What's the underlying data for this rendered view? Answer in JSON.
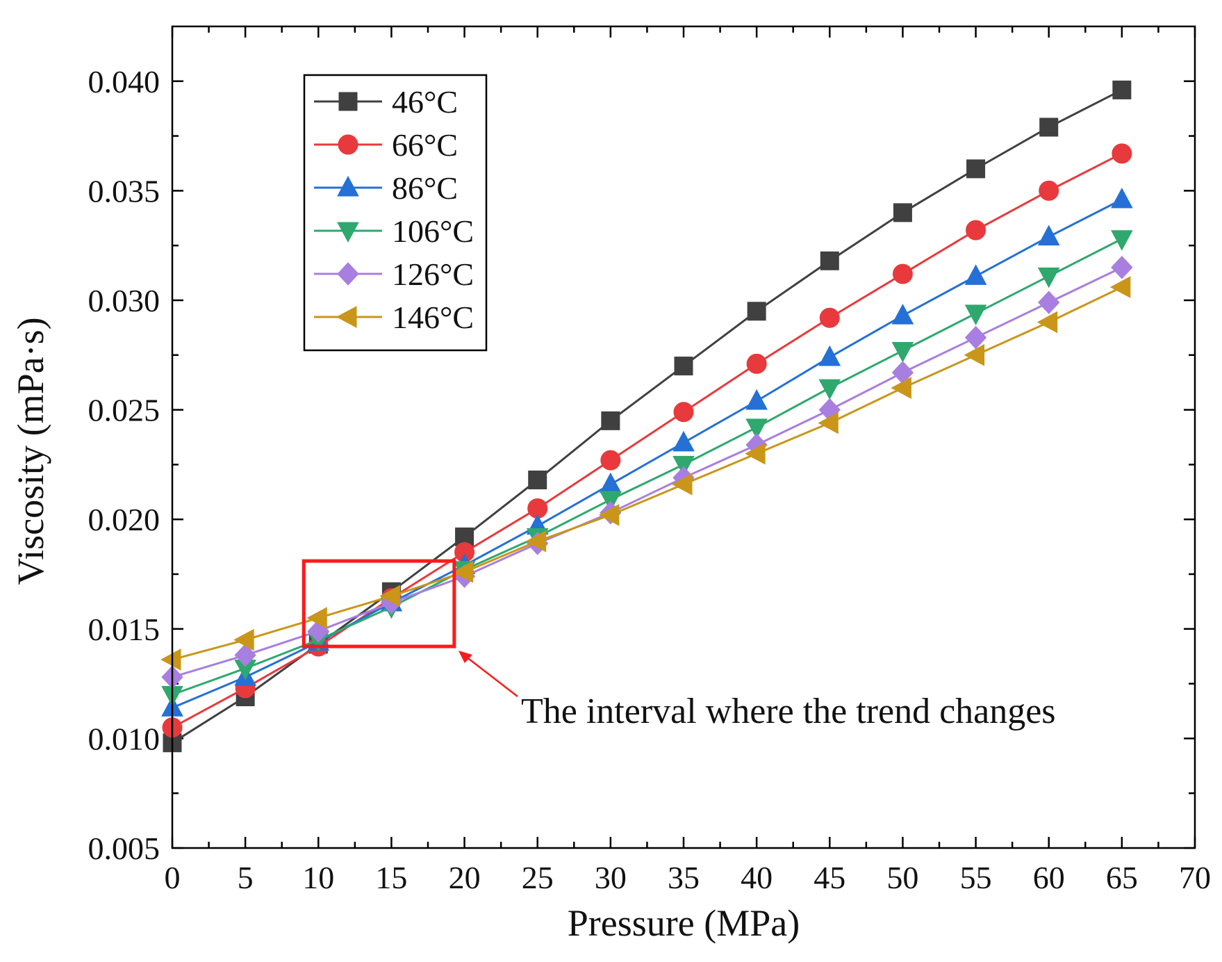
{
  "chart_data": {
    "type": "line",
    "xlabel": "Pressure (MPa)",
    "ylabel": "Viscosity (mPa·s)",
    "xlim": [
      0,
      70
    ],
    "ylim": [
      0.005,
      0.0425
    ],
    "xticks": [
      0,
      5,
      10,
      15,
      20,
      25,
      30,
      35,
      40,
      45,
      50,
      55,
      60,
      65,
      70
    ],
    "yticks": [
      0.005,
      0.01,
      0.015,
      0.02,
      0.025,
      0.03,
      0.035,
      0.04
    ],
    "ytick_labels": [
      "0.005",
      "0.010",
      "0.015",
      "0.020",
      "0.025",
      "0.030",
      "0.035",
      "0.040"
    ],
    "legend_position": "top-left",
    "x": [
      0,
      5,
      10,
      15,
      20,
      25,
      30,
      35,
      40,
      45,
      50,
      55,
      60,
      65
    ],
    "series": [
      {
        "name": "46°C",
        "color": "#404040",
        "marker": "square",
        "values": [
          0.0098,
          0.0119,
          0.0143,
          0.0167,
          0.0192,
          0.0218,
          0.0245,
          0.027,
          0.0295,
          0.0318,
          0.034,
          0.036,
          0.0379,
          0.0396
        ]
      },
      {
        "name": "66°C",
        "color": "#e8393c",
        "marker": "circle",
        "values": [
          0.0105,
          0.0123,
          0.0142,
          0.0164,
          0.0185,
          0.0205,
          0.0227,
          0.0249,
          0.0271,
          0.0292,
          0.0312,
          0.0332,
          0.035,
          0.0367
        ]
      },
      {
        "name": "86°C",
        "color": "#2470d6",
        "marker": "triangle-up",
        "values": [
          0.0114,
          0.0128,
          0.0144,
          0.0162,
          0.0179,
          0.0197,
          0.0216,
          0.0235,
          0.0254,
          0.0274,
          0.0293,
          0.0311,
          0.0329,
          0.0346
        ]
      },
      {
        "name": "106°C",
        "color": "#2fa86e",
        "marker": "triangle-down",
        "values": [
          0.012,
          0.0132,
          0.0145,
          0.016,
          0.0177,
          0.0192,
          0.0209,
          0.0225,
          0.0242,
          0.026,
          0.0277,
          0.0294,
          0.0311,
          0.0328
        ]
      },
      {
        "name": "126°C",
        "color": "#a87ee0",
        "marker": "diamond",
        "values": [
          0.0128,
          0.0138,
          0.0149,
          0.0162,
          0.0174,
          0.0189,
          0.0203,
          0.0219,
          0.0234,
          0.025,
          0.0267,
          0.0283,
          0.0299,
          0.0315
        ]
      },
      {
        "name": "146°C",
        "color": "#c9961a",
        "marker": "triangle-left",
        "values": [
          0.0136,
          0.0145,
          0.0155,
          0.0165,
          0.0176,
          0.019,
          0.0202,
          0.0216,
          0.023,
          0.0244,
          0.026,
          0.0275,
          0.029,
          0.0306
        ]
      }
    ],
    "annotation": {
      "text": "The interval where the trend changes",
      "box_x_range": [
        9,
        19.3
      ],
      "box_y_range": [
        0.0142,
        0.0181
      ],
      "box_color": "#ff1a1a"
    }
  }
}
